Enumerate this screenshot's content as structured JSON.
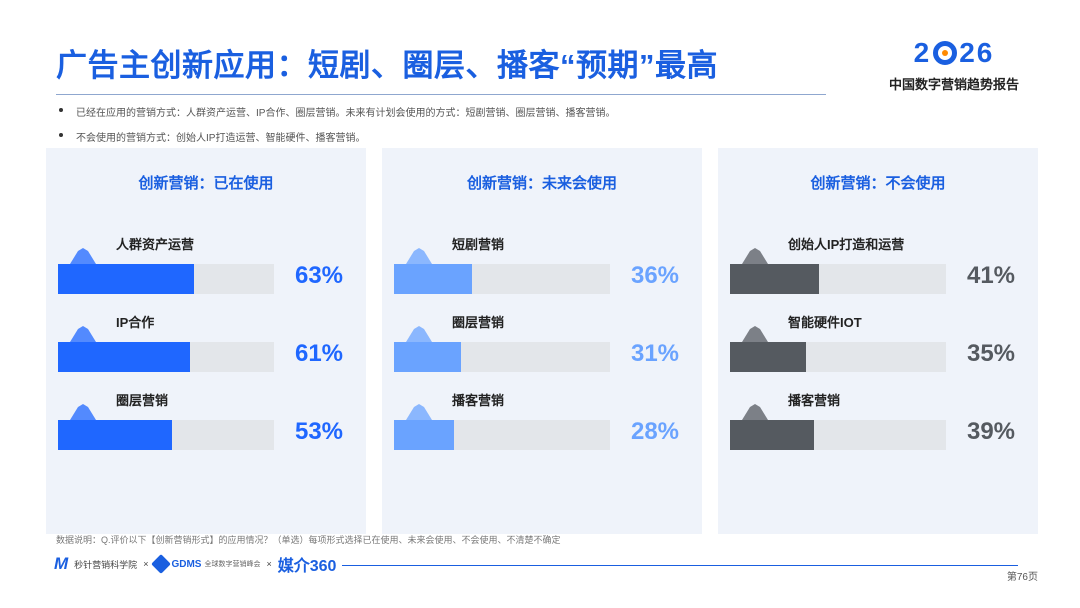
{
  "title": "广告主创新应用：短剧、圈层、播客“预期”最高",
  "brand": {
    "year_prefix": "2",
    "year_suffix": "26",
    "subtitle": "中国数字营销趋势报告"
  },
  "bullets": [
    "已经在应用的营销方式：人群资产运营、IP合作、圈层营销。未来有计划会使用的方式：短剧营销、圈层营销、播客营销。",
    "不会使用的营销方式：创始人IP打造运营、智能硬件、播客营销。"
  ],
  "colors": {
    "accent": "#1a5fe0",
    "in_use": "#1f67ff",
    "future": "#6aa3ff",
    "never": "#555a60",
    "track": "#e3e6ea"
  },
  "chart_data": [
    {
      "type": "bar",
      "title": "创新营销：已在使用",
      "categories": [
        "人群资产运营",
        "IP合作",
        "圈层营销"
      ],
      "values": [
        63,
        61,
        53
      ],
      "value_labels": [
        "63%",
        "61%",
        "53%"
      ],
      "ylim": [
        0,
        100
      ],
      "color": "#1f67ff"
    },
    {
      "type": "bar",
      "title": "创新营销：未来会使用",
      "categories": [
        "短剧营销",
        "圈层营销",
        "播客营销"
      ],
      "values": [
        36,
        31,
        28
      ],
      "value_labels": [
        "36%",
        "31%",
        "28%"
      ],
      "ylim": [
        0,
        100
      ],
      "color": "#6aa3ff"
    },
    {
      "type": "bar",
      "title": "创新营销：不会使用",
      "categories": [
        "创始人IP打造和运营",
        "智能硬件IOT",
        "播客营销"
      ],
      "values": [
        41,
        35,
        39
      ],
      "value_labels": [
        "41%",
        "35%",
        "39%"
      ],
      "ylim": [
        0,
        100
      ],
      "color": "#555a60"
    }
  ],
  "note": "数据说明：Q.评价以下【创新营销形式】的应用情况？（单选）每项形式选择已在使用、未来会使用、不会使用、不清楚不确定",
  "footer": {
    "logo1_text": "秒针营销科学院",
    "sep": "×",
    "logo2_text": "GDMS",
    "logo2_sub": "全球数字营销峰会",
    "logo3_text": "媒介360",
    "page": "第76页"
  }
}
